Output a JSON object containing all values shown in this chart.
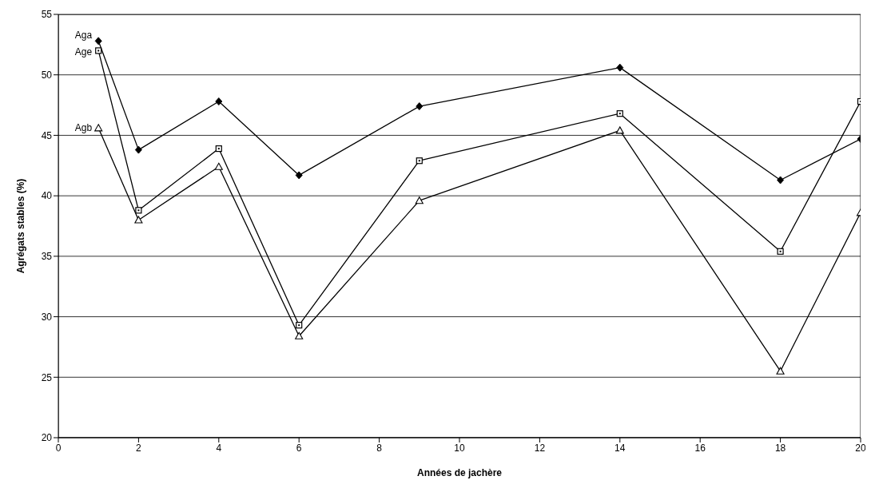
{
  "chart_data": {
    "type": "line",
    "xlabel": "Années de jachère",
    "ylabel": "Agrégats stables (%)",
    "x": [
      1,
      2,
      4,
      6,
      9,
      14,
      18,
      20
    ],
    "series": [
      {
        "name": "Aga",
        "color": "#000000",
        "marker": "diamond",
        "values": [
          52.8,
          43.8,
          47.8,
          41.7,
          47.4,
          50.6,
          41.3,
          44.7
        ]
      },
      {
        "name": "Age",
        "color": "#000000",
        "marker": "square",
        "values": [
          52.0,
          38.8,
          43.9,
          29.3,
          42.9,
          46.8,
          35.4,
          47.8
        ]
      },
      {
        "name": "Agb",
        "color": "#000000",
        "marker": "triangle",
        "values": [
          45.6,
          38.0,
          42.4,
          28.4,
          39.6,
          45.4,
          25.5,
          38.6
        ]
      }
    ],
    "xlim": [
      0,
      20
    ],
    "xticks": [
      0,
      2,
      4,
      6,
      8,
      10,
      12,
      14,
      16,
      18,
      20
    ],
    "ylim": [
      20,
      55
    ],
    "yticks": [
      20,
      25,
      30,
      35,
      40,
      45,
      50,
      55
    ],
    "grid": "y",
    "line_style": "solid"
  }
}
